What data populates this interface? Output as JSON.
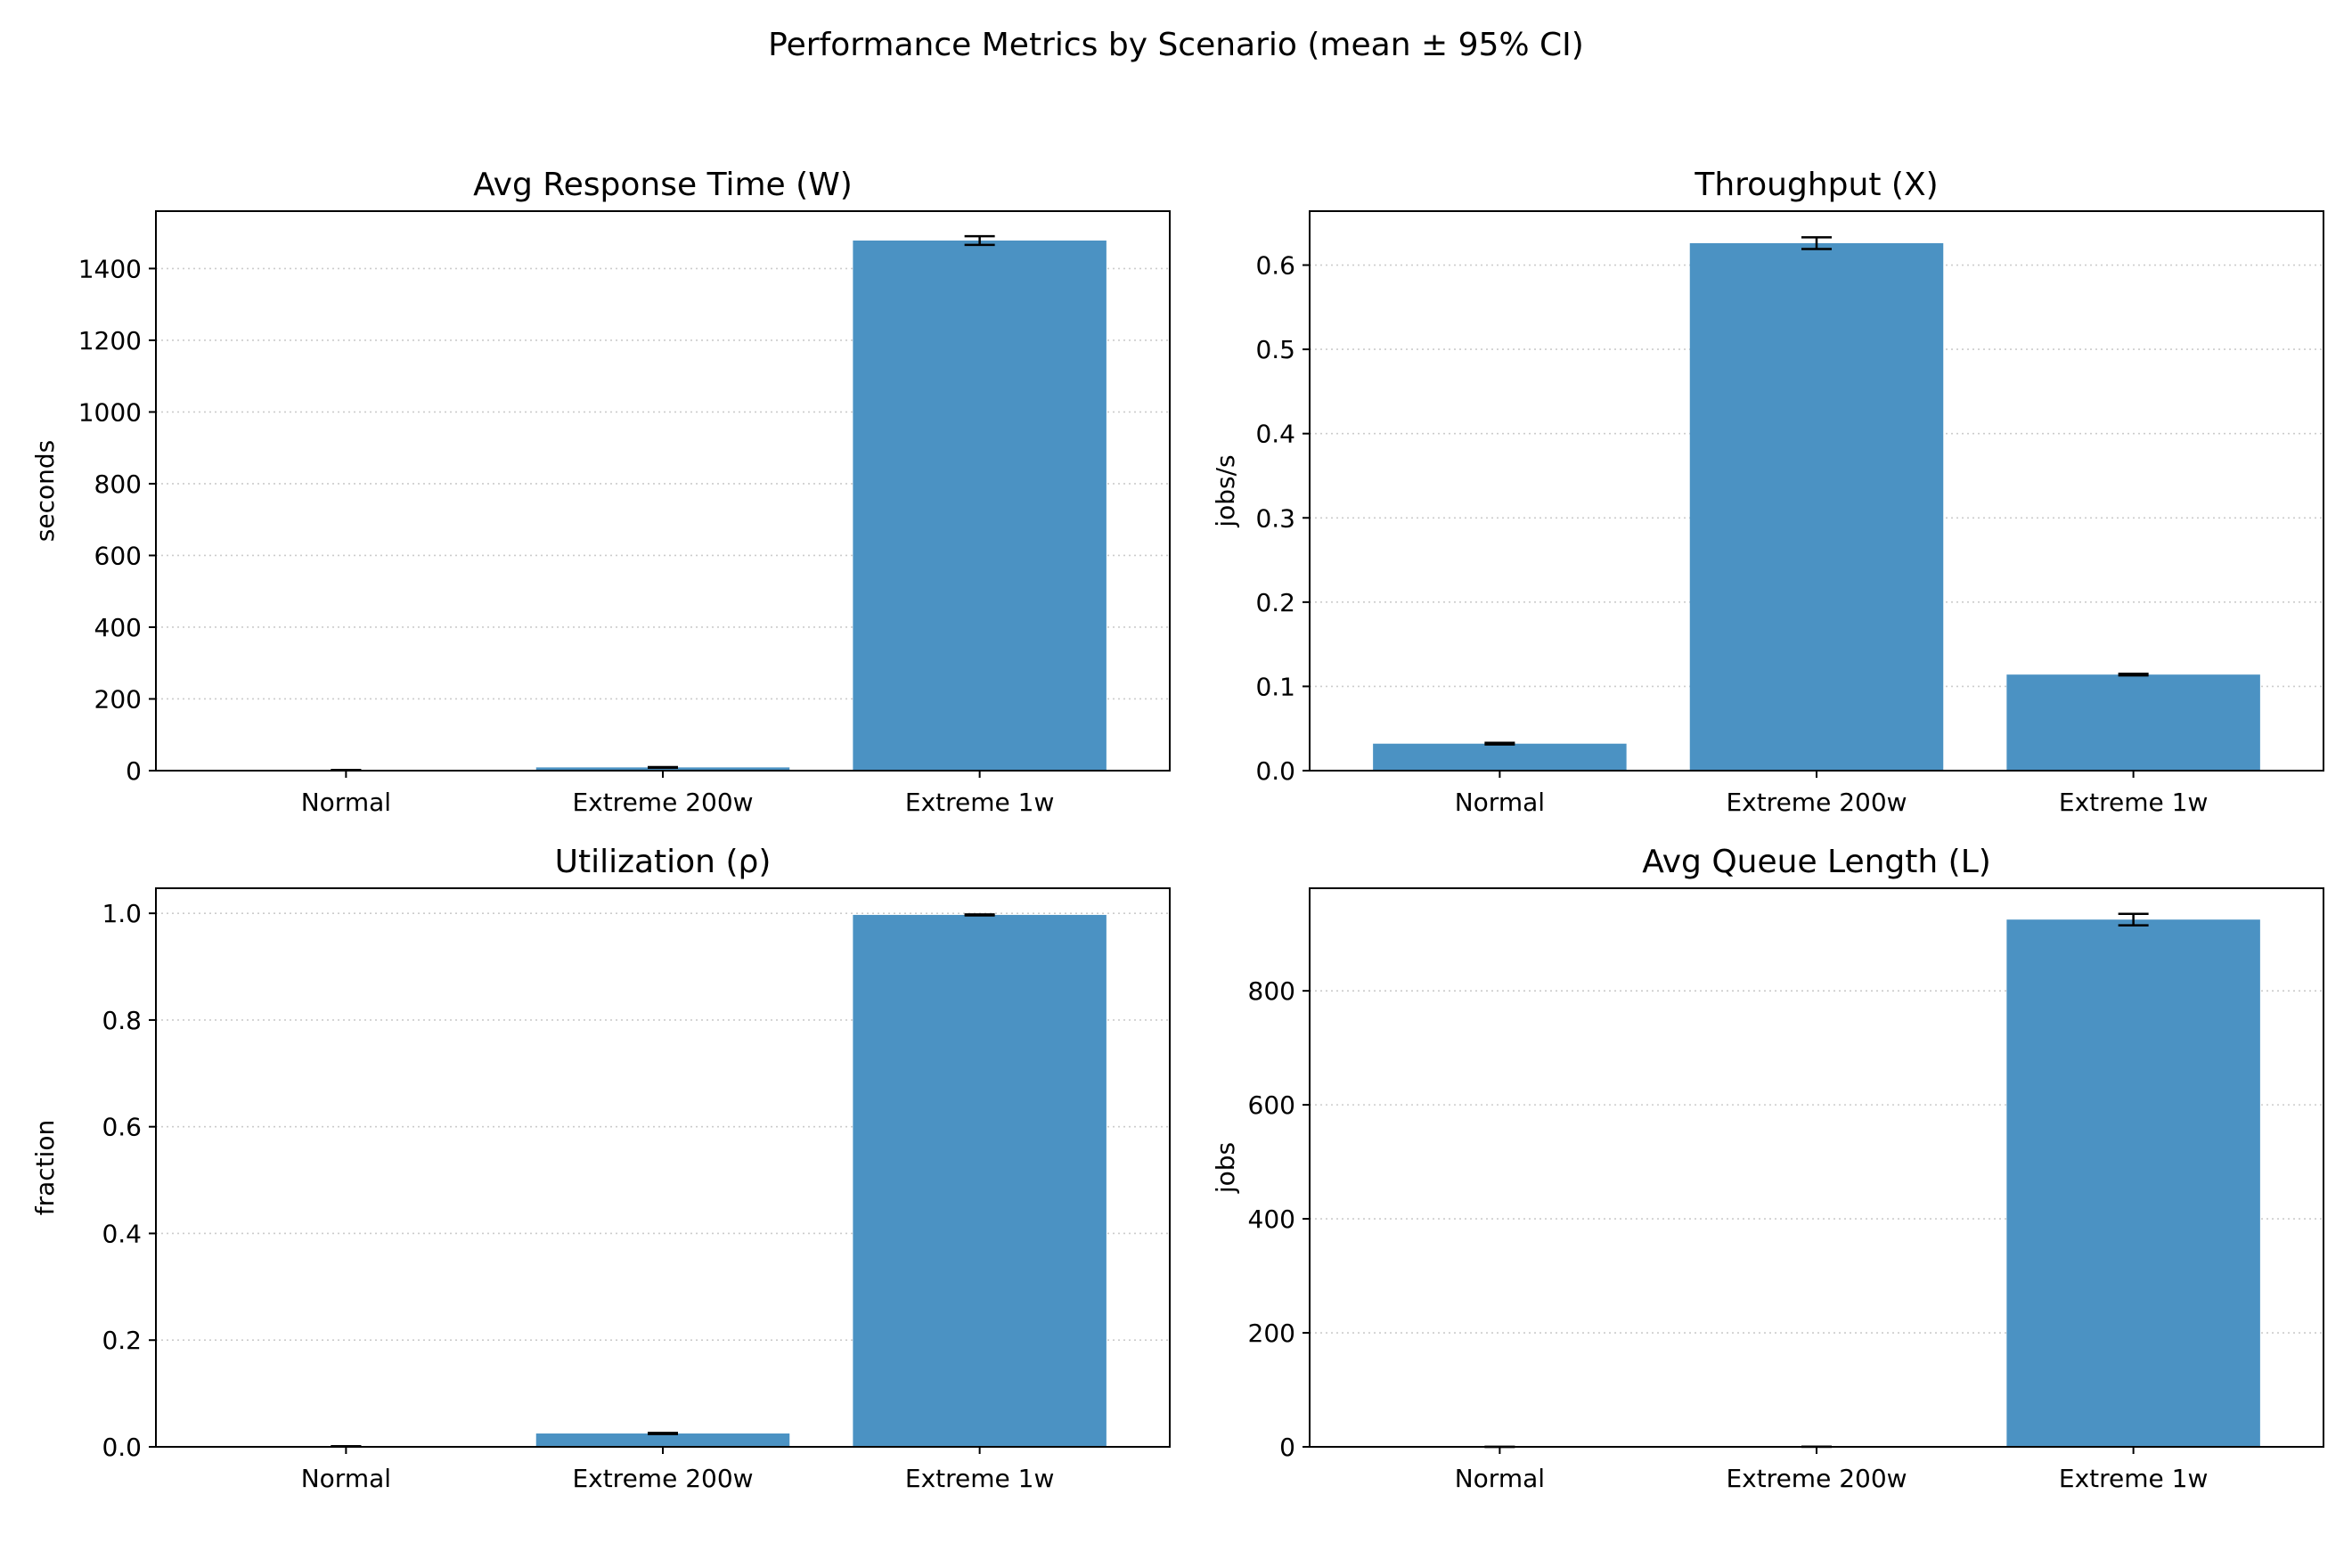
{
  "figure": {
    "suptitle": "Performance Metrics by Scenario (mean ± 95% CI)",
    "bar_color": "#4b92c3",
    "grid_color": "#cccccc",
    "error_color": "#000000"
  },
  "chart_data": [
    {
      "type": "bar",
      "title": "Avg Response Time (W)",
      "xlabel": "",
      "ylabel": "seconds",
      "categories": [
        "Normal",
        "Extreme 200w",
        "Extreme 1w"
      ],
      "values": [
        1.5,
        9,
        1478
      ],
      "errors": [
        0.5,
        1,
        12
      ],
      "ylim": [
        0,
        1560
      ],
      "yticks": [
        0,
        200,
        400,
        600,
        800,
        1000,
        1200,
        1400
      ],
      "ytick_labels": [
        "0",
        "200",
        "400",
        "600",
        "800",
        "1000",
        "1200",
        "1400"
      ],
      "grid": "y-dotted"
    },
    {
      "type": "bar",
      "title": "Throughput (X)",
      "xlabel": "",
      "ylabel": "jobs/s",
      "categories": [
        "Normal",
        "Extreme 200w",
        "Extreme 1w"
      ],
      "values": [
        0.032,
        0.626,
        0.114
      ],
      "errors": [
        0.001,
        0.007,
        0.001
      ],
      "ylim": [
        0,
        0.664
      ],
      "yticks": [
        0.0,
        0.1,
        0.2,
        0.3,
        0.4,
        0.5,
        0.6
      ],
      "ytick_labels": [
        "0.0",
        "0.1",
        "0.2",
        "0.3",
        "0.4",
        "0.5",
        "0.6"
      ],
      "grid": "y-dotted"
    },
    {
      "type": "bar",
      "title": "Utilization (ρ)",
      "xlabel": "",
      "ylabel": "fraction",
      "categories": [
        "Normal",
        "Extreme 200w",
        "Extreme 1w"
      ],
      "values": [
        0.001,
        0.025,
        0.997
      ],
      "errors": [
        0.0,
        0.001,
        0.001
      ],
      "ylim": [
        0,
        1.047
      ],
      "yticks": [
        0.0,
        0.2,
        0.4,
        0.6,
        0.8,
        1.0
      ],
      "ytick_labels": [
        "0.0",
        "0.2",
        "0.4",
        "0.6",
        "0.8",
        "1.0"
      ],
      "grid": "y-dotted"
    },
    {
      "type": "bar",
      "title": "Avg Queue Length (L)",
      "xlabel": "",
      "ylabel": "jobs",
      "categories": [
        "Normal",
        "Extreme 200w",
        "Extreme 1w"
      ],
      "values": [
        0.05,
        0.2,
        925
      ],
      "errors": [
        0.0,
        0.0,
        10
      ],
      "ylim": [
        0,
        980
      ],
      "yticks": [
        0,
        200,
        400,
        600,
        800
      ],
      "ytick_labels": [
        "0",
        "200",
        "400",
        "600",
        "800"
      ],
      "grid": "y-dotted"
    }
  ]
}
